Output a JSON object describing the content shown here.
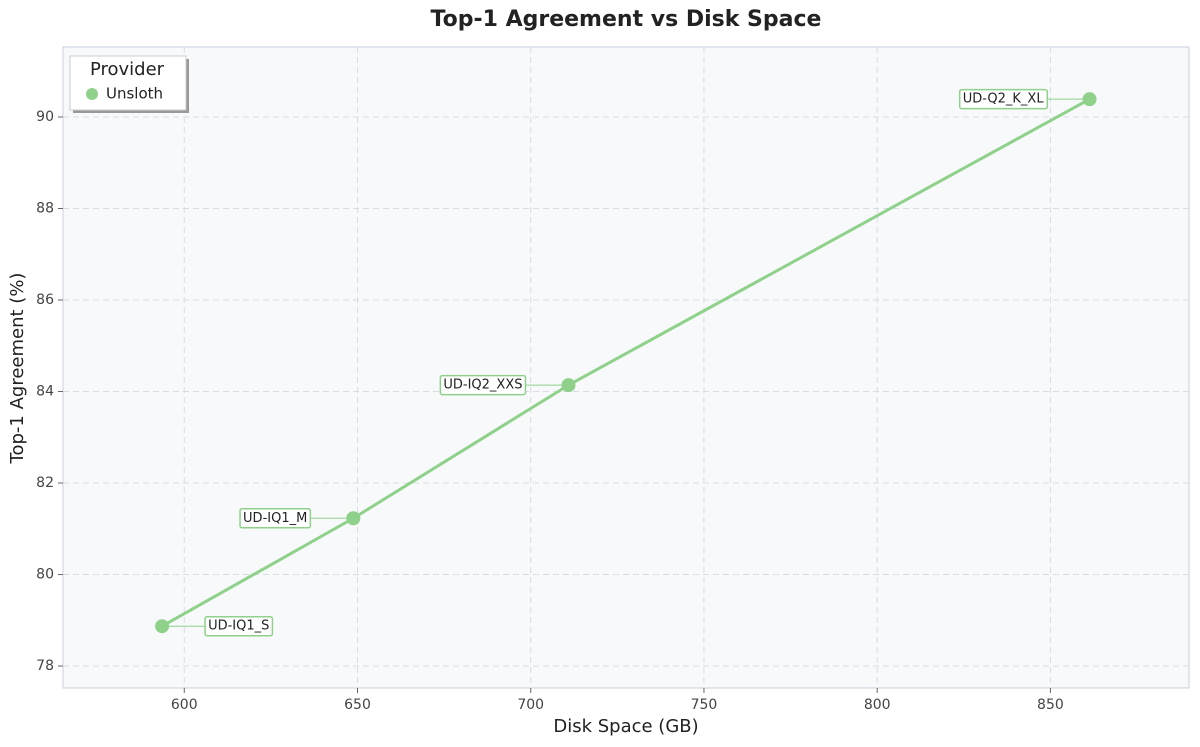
{
  "chart_data": {
    "type": "line",
    "title": "Top-1 Agreement vs Disk Space",
    "x_label": "Disk Space (GB)",
    "y_label": "Top-1 Agreement (%)",
    "legend_title": "Provider",
    "legend_position": "upper left",
    "grid": true,
    "xlim": [
      565,
      890
    ],
    "ylim": [
      77.52,
      91.53
    ],
    "xticks": [
      600,
      650,
      700,
      750,
      800,
      850
    ],
    "yticks": [
      78,
      80,
      82,
      84,
      86,
      88,
      90
    ],
    "series": [
      {
        "name": "Unsloth",
        "color": "#8fd18a",
        "x": [
          593.6,
          648.8,
          710.9,
          861.3
        ],
        "values": [
          78.87,
          81.23,
          84.14,
          90.39
        ],
        "labels": [
          "UD-IQ1_S",
          "UD-IQ1_M",
          "UD-IQ2_XXS",
          "UD-Q2_K_XL"
        ]
      }
    ]
  }
}
